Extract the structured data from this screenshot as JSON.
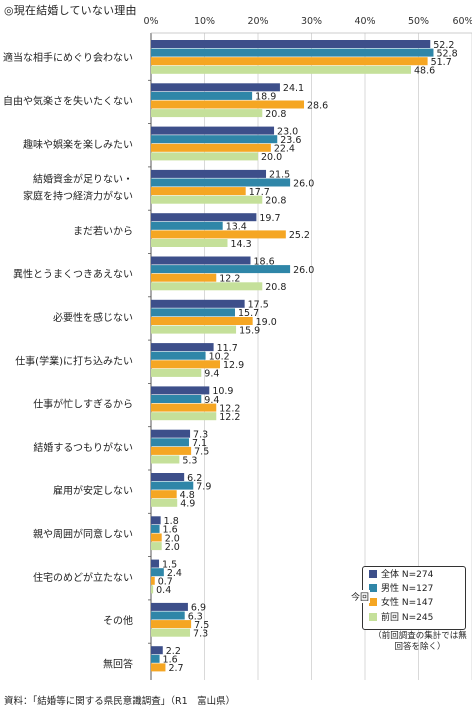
{
  "chart_data": {
    "type": "bar",
    "title": "◎現在結婚していない理由",
    "xlim": [
      0,
      60
    ],
    "x_ticks": [
      "0%",
      "10%",
      "20%",
      "30%",
      "40%",
      "50%",
      "60%"
    ],
    "grid": true,
    "legend_placement": "bottom-right",
    "categories": [
      "適当な相手にめぐり会わない",
      "自由や気楽さを失いたくない",
      "趣味や娯楽を楽しみたい",
      "結婚資金が足りない・\n家庭を持つ経済力がない",
      "まだ若いから",
      "異性とうまくつきあえない",
      "必要性を感じない",
      "仕事(学業)に打ち込みたい",
      "仕事が忙しすぎるから",
      "結婚するつもりがない",
      "雇用が安定しない",
      "親や周囲が同意しない",
      "住宅のめどが立たない",
      "その他",
      "無回答"
    ],
    "series": [
      {
        "name": "全体 N=274",
        "color": "#3d4f8a",
        "values": [
          52.2,
          24.1,
          23.0,
          21.5,
          19.7,
          18.6,
          17.5,
          11.7,
          10.9,
          7.3,
          6.2,
          1.8,
          1.5,
          6.9,
          2.2
        ]
      },
      {
        "name": "男性 N=127",
        "color": "#2f86a8",
        "values": [
          52.8,
          18.9,
          23.6,
          26.0,
          13.4,
          26.0,
          15.7,
          10.2,
          9.4,
          7.1,
          7.9,
          1.6,
          2.4,
          6.3,
          1.6
        ]
      },
      {
        "name": "女性 N=147",
        "color": "#f5a623",
        "values": [
          51.7,
          28.6,
          22.4,
          17.7,
          25.2,
          12.2,
          19.0,
          12.9,
          12.2,
          7.5,
          4.8,
          2.0,
          0.7,
          7.5,
          2.7
        ]
      },
      {
        "name": "前回 N=245",
        "color": "#c5e09a",
        "values": [
          48.6,
          20.8,
          20.0,
          20.8,
          14.3,
          20.8,
          15.9,
          9.4,
          12.2,
          5.3,
          4.9,
          2.0,
          0.4,
          7.3,
          null
        ]
      }
    ],
    "legend_group_label": "今回",
    "legend_note": "（前回調査の集計では無回答を除く）",
    "source": "資料：「結婚等に関する県民意識調査」（R1　富山県）"
  }
}
